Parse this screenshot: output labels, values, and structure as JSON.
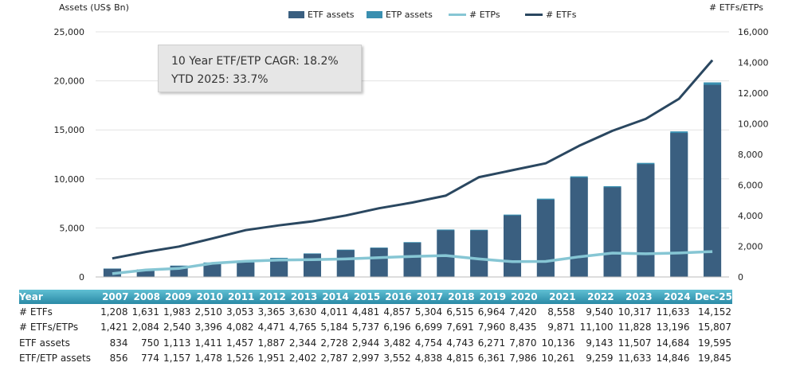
{
  "left_axis_title": "Assets (US$ Bn)",
  "right_axis_title": "# ETFs/ETPs",
  "legend": [
    {
      "label": "ETF assets",
      "color": "#3a5f80",
      "kind": "bar"
    },
    {
      "label": "ETP assets",
      "color": "#3a8fb0",
      "kind": "bar"
    },
    {
      "label": "# ETPs",
      "color": "#86c6d4",
      "kind": "line"
    },
    {
      "label": "# ETFs",
      "color": "#2a4760",
      "kind": "line"
    }
  ],
  "callout": {
    "line1": "10 Year ETF/ETP CAGR: 18.2%",
    "line2": "YTD 2025: 33.7%"
  },
  "chart_data": {
    "type": "bar",
    "categories": [
      "2007",
      "2008",
      "2009",
      "2010",
      "2011",
      "2012",
      "2013",
      "2014",
      "2015",
      "2016",
      "2017",
      "2018",
      "2019",
      "2020",
      "2021",
      "2022",
      "2023",
      "2024",
      "Dec-25"
    ],
    "series": [
      {
        "name": "ETF assets",
        "axis": "left",
        "type": "bar",
        "values": [
          834,
          750,
          1113,
          1411,
          1457,
          1887,
          2344,
          2728,
          2944,
          3482,
          4754,
          4743,
          6271,
          7870,
          10136,
          9143,
          11507,
          14684,
          19595
        ]
      },
      {
        "name": "ETP assets",
        "axis": "left",
        "type": "bar-stack-total",
        "values": [
          856,
          774,
          1157,
          1478,
          1526,
          1951,
          2402,
          2787,
          2997,
          3552,
          4838,
          4815,
          6361,
          7986,
          10261,
          9259,
          11633,
          14846,
          19845
        ]
      },
      {
        "name": "# ETPs",
        "axis": "right",
        "type": "line",
        "values": [
          213,
          453,
          557,
          886,
          1029,
          1106,
          1135,
          1173,
          1256,
          1339,
          1395,
          1176,
          996,
          1015,
          1313,
          1560,
          1511,
          1563,
          1655
        ]
      },
      {
        "name": "# ETFs",
        "axis": "right",
        "type": "line",
        "values": [
          1208,
          1631,
          1983,
          2510,
          3053,
          3365,
          3630,
          4011,
          4481,
          4857,
          5304,
          6515,
          6964,
          7420,
          8558,
          9540,
          10317,
          11633,
          14152
        ]
      }
    ],
    "ylim_left": [
      0,
      25000
    ],
    "yticks_left": [
      "25,000",
      "20,000",
      "15,000",
      "10,000",
      "5,000",
      "0"
    ],
    "ylim_right": [
      0,
      16000
    ],
    "yticks_right": [
      "16,000",
      "14,000",
      "12,000",
      "10,000",
      "8,000",
      "6,000",
      "4,000",
      "2,000",
      "0"
    ],
    "grid": true,
    "legend_position": "top"
  },
  "table": {
    "header_label": "Year",
    "years": [
      "2007",
      "2008",
      "2009",
      "2010",
      "2011",
      "2012",
      "2013",
      "2014",
      "2015",
      "2016",
      "2017",
      "2018",
      "2019",
      "2020",
      "2021",
      "2022",
      "2023",
      "2024",
      "Dec-25"
    ],
    "rows": [
      {
        "label": "# ETFs",
        "values": [
          "1,208",
          "1,631",
          "1,983",
          "2,510",
          "3,053",
          "3,365",
          "3,630",
          "4,011",
          "4,481",
          "4,857",
          "5,304",
          "6,515",
          "6,964",
          "7,420",
          "8,558",
          "9,540",
          "10,317",
          "11,633",
          "14,152"
        ]
      },
      {
        "label": "# ETFs/ETPs",
        "values": [
          "1,421",
          "2,084",
          "2,540",
          "3,396",
          "4,082",
          "4,471",
          "4,765",
          "5,184",
          "5,737",
          "6,196",
          "6,699",
          "7,691",
          "7,960",
          "8,435",
          "9,871",
          "11,100",
          "11,828",
          "13,196",
          "15,807"
        ]
      },
      {
        "label": "ETF assets",
        "values": [
          "834",
          "750",
          "1,113",
          "1,411",
          "1,457",
          "1,887",
          "2,344",
          "2,728",
          "2,944",
          "3,482",
          "4,754",
          "4,743",
          "6,271",
          "7,870",
          "10,136",
          "9,143",
          "11,507",
          "14,684",
          "19,595"
        ]
      },
      {
        "label": "ETF/ETP assets",
        "values": [
          "856",
          "774",
          "1,157",
          "1,478",
          "1,526",
          "1,951",
          "2,402",
          "2,787",
          "2,997",
          "3,552",
          "4,838",
          "4,815",
          "6,361",
          "7,986",
          "10,261",
          "9,259",
          "11,633",
          "14,846",
          "19,845"
        ]
      }
    ]
  }
}
